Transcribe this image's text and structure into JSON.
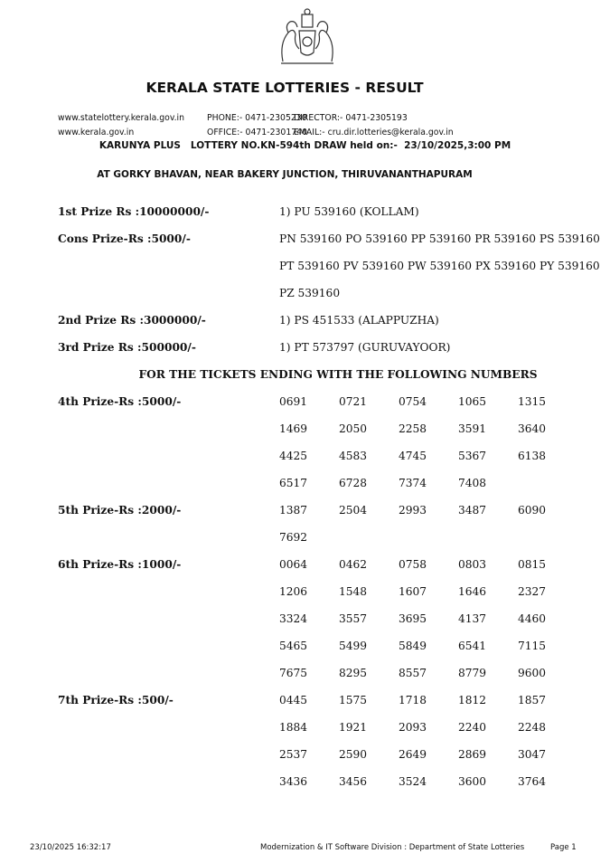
{
  "header": {
    "title": "KERALA STATE LOTTERIES - RESULT",
    "website1": "www.statelottery.kerala.gov.in",
    "website2": "www.kerala.gov.in",
    "phone": "PHONE:- 0471-2305230",
    "office": "OFFICE:- 0471-2301740",
    "director": "DIRECTOR:- 0471-2305193",
    "email": "EMAIL:- cru.dir.lotteries@kerala.gov.in",
    "draw_line": "KARUNYA PLUS   LOTTERY NO.KN-594th DRAW held on:-  23/10/2025,3:00 PM",
    "venue": "AT GORKY BHAVAN,  NEAR BAKERY JUNCTION, THIRUVANANTHAPURAM"
  },
  "top_prizes": [
    {
      "label": "1st Prize Rs :10000000/-",
      "lines": [
        "1) PU 539160 (KOLLAM)"
      ]
    },
    {
      "label": "Cons Prize-Rs :5000/-",
      "lines": [
        "PN 539160 PO 539160 PP 539160  PR 539160 PS 539160",
        "PT 539160  PV 539160 PW 539160 PX 539160 PY 539160",
        "PZ 539160"
      ]
    },
    {
      "label": "2nd Prize Rs :3000000/-",
      "lines": [
        "1) PS 451533 (ALAPPUZHA)"
      ]
    },
    {
      "label": "3rd Prize Rs :500000/-",
      "lines": [
        "1) PT 573797 (GURUVAYOOR)"
      ]
    }
  ],
  "ending_heading": "FOR THE TICKETS ENDING WITH THE FOLLOWING NUMBERS",
  "ending_prizes": [
    {
      "label": "4th Prize-Rs :5000/-",
      "numbers": [
        "0691",
        "0721",
        "0754",
        "1065",
        "1315",
        "1469",
        "2050",
        "2258",
        "3591",
        "3640",
        "4425",
        "4583",
        "4745",
        "5367",
        "6138",
        "6517",
        "6728",
        "7374",
        "7408"
      ]
    },
    {
      "label": "5th Prize-Rs :2000/-",
      "numbers": [
        "1387",
        "2504",
        "2993",
        "3487",
        "6090",
        "7692"
      ]
    },
    {
      "label": "6th Prize-Rs :1000/-",
      "numbers": [
        "0064",
        "0462",
        "0758",
        "0803",
        "0815",
        "1206",
        "1548",
        "1607",
        "1646",
        "2327",
        "3324",
        "3557",
        "3695",
        "4137",
        "4460",
        "5465",
        "5499",
        "5849",
        "6541",
        "7115",
        "7675",
        "8295",
        "8557",
        "8779",
        "9600"
      ]
    },
    {
      "label": "7th Prize-Rs :500/-",
      "numbers": [
        "0445",
        "1575",
        "1718",
        "1812",
        "1857",
        "1884",
        "1921",
        "2093",
        "2240",
        "2248",
        "2537",
        "2590",
        "2649",
        "2869",
        "3047",
        "3436",
        "3456",
        "3524",
        "3600",
        "3764"
      ]
    }
  ],
  "footer": {
    "timestamp": "23/10/2025 16:32:17",
    "division": "Modernization & IT Software Division : Department of State Lotteries",
    "page": "Page 1"
  }
}
